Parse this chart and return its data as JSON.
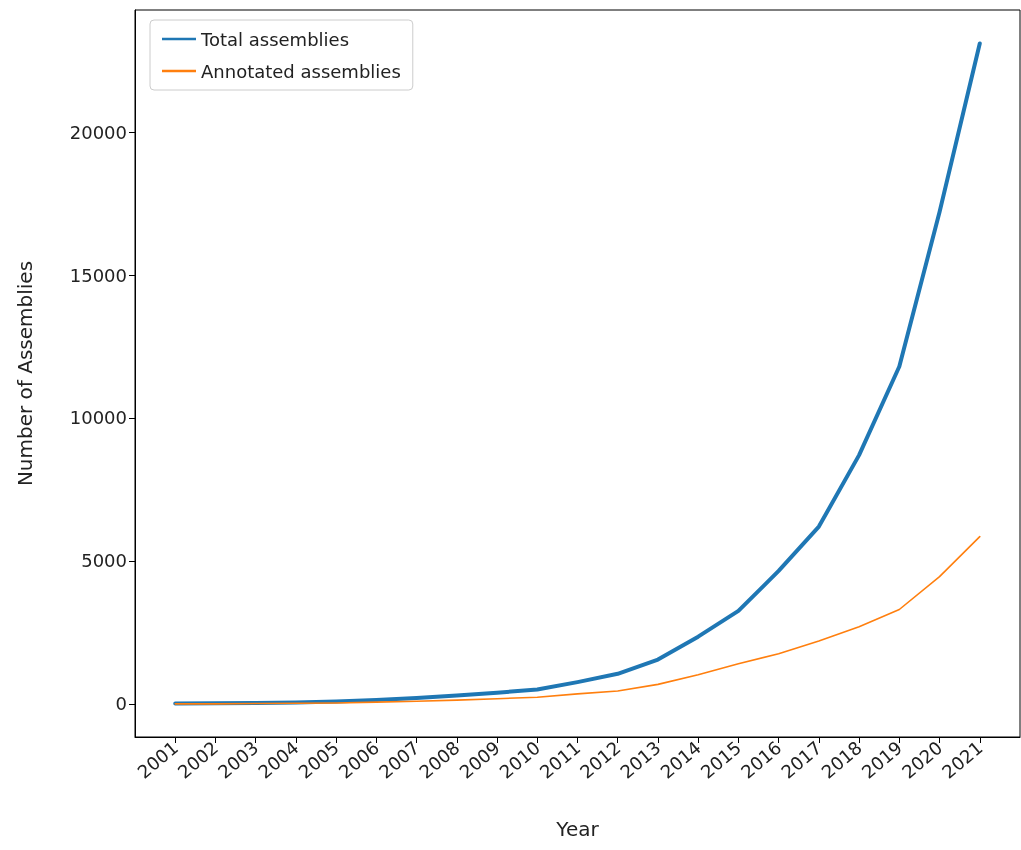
{
  "chart_data": {
    "type": "line",
    "xlabel": "Year",
    "ylabel": "Number of Assemblies",
    "x": [
      2001,
      2002,
      2003,
      2004,
      2005,
      2006,
      2007,
      2008,
      2009,
      2010,
      2011,
      2012,
      2013,
      2014,
      2015,
      2016,
      2017,
      2018,
      2019,
      2020,
      2021
    ],
    "series": [
      {
        "name": "Total assemblies",
        "color": "#1f77b4",
        "values": [
          10,
          20,
          30,
          50,
          80,
          130,
          200,
          290,
          390,
          500,
          760,
          1050,
          1550,
          2350,
          3250,
          4650,
          6200,
          8700,
          11800,
          17200,
          23100
        ]
      },
      {
        "name": "Annotated assemblies",
        "color": "#ff7f0e",
        "values": [
          0,
          0,
          10,
          20,
          30,
          60,
          90,
          130,
          180,
          230,
          350,
          450,
          680,
          1020,
          1400,
          1750,
          2200,
          2700,
          3300,
          4450,
          5850
        ]
      }
    ],
    "xlim": [
      2000,
      2022
    ],
    "xticks": [
      2001,
      2002,
      2003,
      2004,
      2005,
      2006,
      2007,
      2008,
      2009,
      2010,
      2011,
      2012,
      2013,
      2014,
      2015,
      2016,
      2017,
      2018,
      2019,
      2020,
      2021
    ],
    "ylim": [
      -1160,
      24270
    ],
    "yticks": [
      0,
      5000,
      10000,
      15000,
      20000
    ],
    "legend": "top left",
    "grid": false,
    "marker": "none",
    "line_style": "solid"
  }
}
